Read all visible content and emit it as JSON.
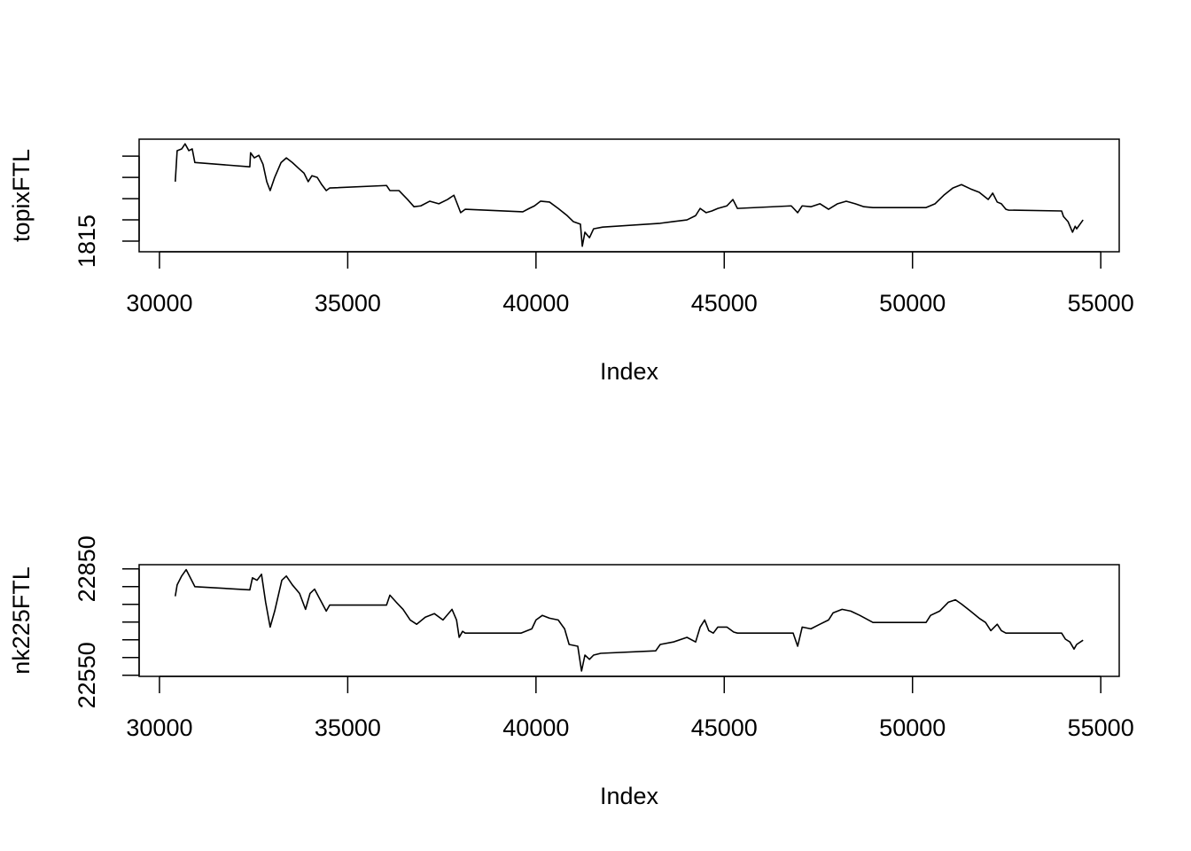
{
  "chart_data": [
    {
      "type": "line",
      "xlabel": "Index",
      "ylabel": "topixFTL",
      "x": [
        30420,
        30470,
        30590,
        30680,
        30780,
        30870,
        30940,
        32400,
        32420,
        32520,
        32640,
        32750,
        32850,
        32940,
        33060,
        33230,
        33370,
        33530,
        33700,
        33840,
        33950,
        34050,
        34190,
        34310,
        34430,
        34520,
        36030,
        36120,
        36360,
        36590,
        36760,
        36940,
        37180,
        37420,
        37650,
        37820,
        37930,
        38000,
        38120,
        39650,
        39820,
        39960,
        40120,
        40360,
        40590,
        40830,
        40990,
        41180,
        41230,
        41300,
        41420,
        41530,
        41770,
        43300,
        43650,
        44010,
        44240,
        44360,
        44520,
        44670,
        44830,
        45070,
        45230,
        45350,
        46780,
        46950,
        47070,
        47300,
        47540,
        47770,
        48010,
        48240,
        48480,
        48710,
        48950,
        50360,
        50600,
        50830,
        51070,
        51300,
        51540,
        51770,
        52010,
        52130,
        52250,
        52360,
        52480,
        52550,
        53960,
        54010,
        54130,
        54250,
        54320,
        54360,
        54530
      ],
      "values": [
        1829.0,
        1836.3,
        1836.7,
        1837.9,
        1836.3,
        1836.7,
        1833.5,
        1832.5,
        1835.8,
        1834.6,
        1835.2,
        1833.1,
        1829.0,
        1826.9,
        1830.0,
        1833.5,
        1834.6,
        1833.5,
        1832.1,
        1831.0,
        1829.0,
        1830.4,
        1830.0,
        1828.3,
        1826.9,
        1827.5,
        1828.1,
        1826.9,
        1826.9,
        1824.8,
        1823.1,
        1823.3,
        1824.4,
        1823.8,
        1824.8,
        1825.8,
        1823.3,
        1821.7,
        1822.5,
        1821.9,
        1822.7,
        1823.3,
        1824.4,
        1824.2,
        1822.7,
        1821.0,
        1819.6,
        1819.0,
        1813.8,
        1817.1,
        1815.8,
        1817.9,
        1818.3,
        1819.2,
        1819.6,
        1820.0,
        1821.0,
        1822.7,
        1821.7,
        1822.1,
        1822.7,
        1823.3,
        1824.8,
        1822.7,
        1823.3,
        1821.7,
        1823.3,
        1823.1,
        1823.8,
        1822.5,
        1823.8,
        1824.4,
        1823.8,
        1823.1,
        1822.9,
        1822.9,
        1823.8,
        1825.8,
        1827.5,
        1828.3,
        1827.3,
        1826.5,
        1824.8,
        1826.3,
        1824.2,
        1823.8,
        1822.5,
        1822.3,
        1822.1,
        1820.8,
        1819.6,
        1817.1,
        1818.5,
        1817.9,
        1820.0
      ],
      "color": "#000000",
      "xlim": [
        29460,
        55490
      ],
      "xticks": [
        30000,
        35000,
        40000,
        45000,
        50000,
        55000
      ],
      "ylim": [
        1812.5,
        1839
      ],
      "yticks": [
        1815
      ],
      "yticks_unlabeled": [
        1820,
        1825,
        1830,
        1835
      ]
    },
    {
      "type": "line",
      "xlabel": "Index",
      "ylabel": "nk225FTL",
      "x": [
        30420,
        30470,
        30590,
        30710,
        30820,
        30940,
        32400,
        32470,
        32590,
        32710,
        32820,
        32940,
        33060,
        33250,
        33370,
        33530,
        33720,
        33880,
        34000,
        34120,
        34280,
        34430,
        34520,
        36030,
        36120,
        36290,
        36470,
        36660,
        36830,
        37060,
        37300,
        37530,
        37770,
        37890,
        37960,
        38050,
        38120,
        39600,
        39770,
        39890,
        40000,
        40170,
        40360,
        40590,
        40760,
        40880,
        41110,
        41210,
        41300,
        41420,
        41530,
        41720,
        43180,
        43300,
        43650,
        44010,
        44240,
        44360,
        44480,
        44590,
        44710,
        44830,
        45070,
        45250,
        45350,
        46830,
        46950,
        47070,
        47300,
        47540,
        47770,
        47890,
        48130,
        48360,
        48600,
        48830,
        48950,
        50360,
        50480,
        50720,
        50950,
        51140,
        51300,
        51540,
        51770,
        51940,
        52080,
        52250,
        52360,
        52480,
        53960,
        54060,
        54180,
        54290,
        54360,
        54530
      ],
      "values": [
        22773,
        22805,
        22830,
        22848,
        22825,
        22800,
        22791,
        22825,
        22818,
        22835,
        22756,
        22686,
        22731,
        22818,
        22830,
        22805,
        22781,
        22736,
        22781,
        22793,
        22761,
        22731,
        22748,
        22748,
        22776,
        22756,
        22736,
        22706,
        22694,
        22714,
        22724,
        22706,
        22736,
        22706,
        22657,
        22674,
        22669,
        22669,
        22676,
        22681,
        22706,
        22719,
        22711,
        22706,
        22681,
        22637,
        22632,
        22562,
        22607,
        22595,
        22607,
        22612,
        22619,
        22637,
        22644,
        22657,
        22644,
        22686,
        22706,
        22676,
        22669,
        22686,
        22686,
        22672,
        22669,
        22669,
        22632,
        22686,
        22681,
        22694,
        22706,
        22726,
        22736,
        22731,
        22719,
        22706,
        22699,
        22699,
        22719,
        22731,
        22756,
        22763,
        22751,
        22731,
        22711,
        22699,
        22676,
        22694,
        22676,
        22669,
        22669,
        22652,
        22644,
        22624,
        22637,
        22649
      ],
      "color": "#000000",
      "xlim": [
        29460,
        55490
      ],
      "xticks": [
        30000,
        35000,
        40000,
        45000,
        50000,
        55000
      ],
      "ylim": [
        22547,
        22862
      ],
      "yticks": [
        22550,
        22850
      ],
      "yticks_unlabeled": [
        22600,
        22650,
        22700,
        22750,
        22800
      ]
    }
  ]
}
